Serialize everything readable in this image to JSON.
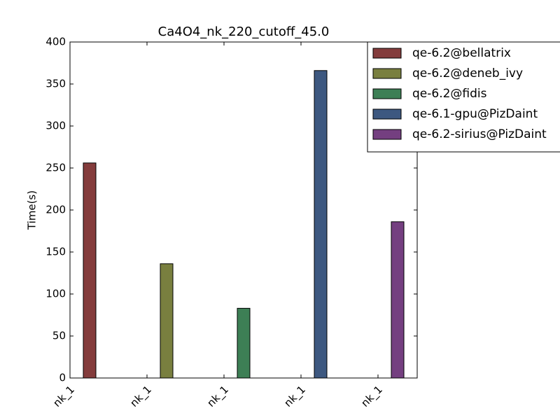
{
  "chart_data": {
    "type": "bar",
    "title": "Ca4O4_nk_220_cutoff_45.0",
    "y_label": "Time(s)",
    "categories": [
      "nk_1",
      "nk_1",
      "nk_1",
      "nk_1",
      "nk_1"
    ],
    "series": [
      {
        "name": "qe-6.2@bellatrix",
        "color": "#843c3c",
        "values": [
          256,
          null,
          null,
          null,
          null
        ]
      },
      {
        "name": "qe-6.2@deneb_ivy",
        "color": "#797f3f",
        "values": [
          null,
          136,
          null,
          null,
          null
        ]
      },
      {
        "name": "qe-6.2@fidis",
        "color": "#3d7f55",
        "values": [
          null,
          null,
          83,
          null,
          null
        ]
      },
      {
        "name": "qe-6.1-gpu@PizDaint",
        "color": "#3d5880",
        "values": [
          null,
          null,
          null,
          366,
          null
        ]
      },
      {
        "name": "qe-6.2-sirius@PizDaint",
        "color": "#743f80",
        "values": [
          null,
          null,
          null,
          null,
          186
        ]
      }
    ],
    "ylim": [
      0,
      400
    ],
    "yticks": [
      0,
      50,
      100,
      150,
      200,
      250,
      300,
      350,
      400
    ],
    "legend": "upper right"
  }
}
